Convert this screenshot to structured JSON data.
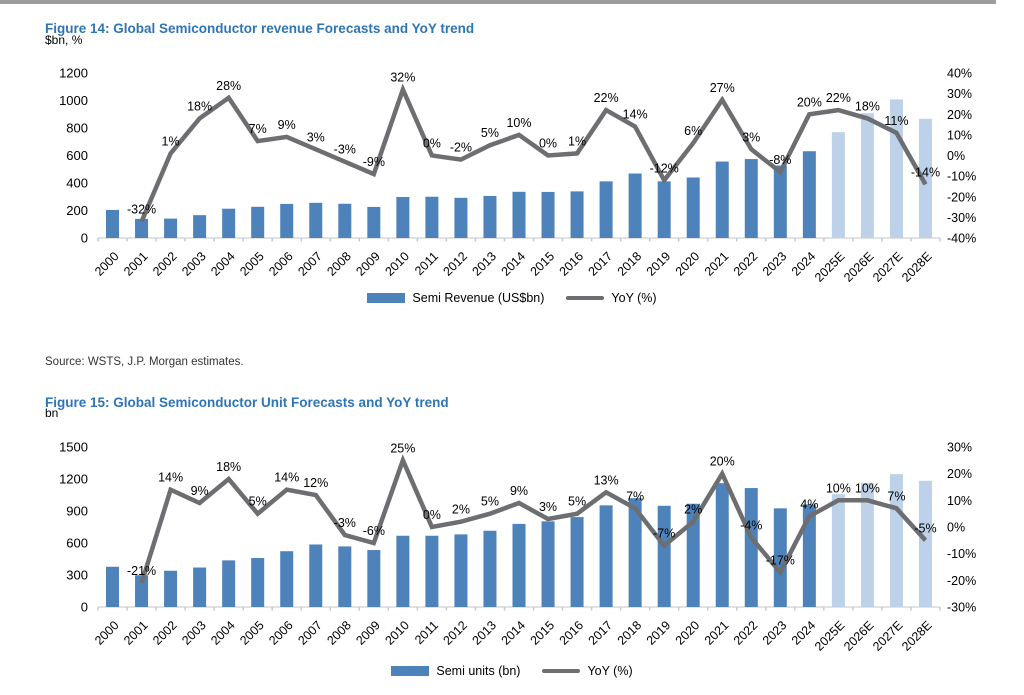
{
  "source": "Source: WSTS, J.P. Morgan estimates.",
  "colors": {
    "bar_actual": "#4e82ba",
    "bar_forecast": "#bdd2e8",
    "yoy_line": "#6d6e71",
    "title_blue": "#2e75b6",
    "axis_line": "#d9d9d9",
    "axis_tick": "#b9cde0"
  },
  "chart_data": [
    {
      "type": "bar+line",
      "title": "Figure 14: Global Semiconductor revenue Forecasts and YoY trend",
      "unit_label": "$bn, %",
      "legend": {
        "bar": "Semi Revenue (US$bn)",
        "line": "YoY (%)"
      },
      "categories": [
        "2000",
        "2001",
        "2002",
        "2003",
        "2004",
        "2005",
        "2006",
        "2007",
        "2008",
        "2009",
        "2010",
        "2011",
        "2012",
        "2013",
        "2014",
        "2015",
        "2016",
        "2017",
        "2018",
        "2019",
        "2020",
        "2021",
        "2022",
        "2023",
        "2024",
        "2025E",
        "2026E",
        "2027E",
        "2028E"
      ],
      "bar_series": {
        "name": "Semi Revenue (US$bn)",
        "values": [
          204,
          139,
          141,
          166,
          213,
          227,
          248,
          256,
          249,
          226,
          298,
          300,
          292,
          306,
          336,
          335,
          339,
          412,
          469,
          412,
          440,
          556,
          574,
          527,
          631,
          770,
          908,
          1008,
          867
        ],
        "forecast_start_index": 25
      },
      "line_series": {
        "name": "YoY (%)",
        "axis": "right",
        "values_pct": [
          null,
          -32,
          1,
          18,
          28,
          7,
          9,
          3,
          -3,
          -9,
          32,
          0,
          -2,
          5,
          10,
          0,
          1,
          22,
          14,
          -12,
          6,
          27,
          3,
          -8,
          20,
          22,
          18,
          11,
          -14
        ],
        "labels": [
          "",
          "-32%",
          "1%",
          "18%",
          "28%",
          "7%",
          "9%",
          "3%",
          "-3%",
          "-9%",
          "32%",
          "0%",
          "-2%",
          "5%",
          "10%",
          "0%",
          "1%",
          "22%",
          "14%",
          "-12%",
          "6%",
          "27%",
          "3%",
          "-8%",
          "20%",
          "22%",
          "18%",
          "11%",
          "-14%"
        ]
      },
      "left_axis": {
        "min": 0,
        "max": 1200,
        "ticks": [
          0,
          200,
          400,
          600,
          800,
          1000,
          1200
        ]
      },
      "right_axis": {
        "min": -40,
        "max": 40,
        "ticks": [
          40,
          30,
          20,
          10,
          0,
          -10,
          -20,
          -30,
          -40
        ],
        "suffix": "%"
      },
      "grid": false,
      "legend_position": "bottom"
    },
    {
      "type": "bar+line",
      "title": "Figure 15: Global Semiconductor Unit Forecasts and YoY trend",
      "unit_label": "bn",
      "legend": {
        "bar": "Semi units (bn)",
        "line": "YoY (%)"
      },
      "categories": [
        "2000",
        "2001",
        "2002",
        "2003",
        "2004",
        "2005",
        "2006",
        "2007",
        "2008",
        "2009",
        "2010",
        "2011",
        "2012",
        "2013",
        "2014",
        "2015",
        "2016",
        "2017",
        "2018",
        "2019",
        "2020",
        "2021",
        "2022",
        "2023",
        "2024",
        "2025E",
        "2026E",
        "2027E",
        "2028E"
      ],
      "bar_series": {
        "name": "Semi units (bn)",
        "values": [
          377,
          298,
          340,
          370,
          437,
          459,
          523,
          586,
          568,
          534,
          668,
          668,
          681,
          715,
          779,
          803,
          843,
          953,
          1020,
          949,
          968,
          1161,
          1115,
          925,
          962,
          1058,
          1164,
          1246,
          1183
        ],
        "forecast_start_index": 25
      },
      "line_series": {
        "name": "YoY (%)",
        "axis": "right",
        "values_pct": [
          null,
          -21,
          14,
          9,
          18,
          5,
          14,
          12,
          -3,
          -6,
          25,
          0,
          2,
          5,
          9,
          3,
          5,
          13,
          7,
          -7,
          2,
          20,
          -4,
          -17,
          4,
          10,
          10,
          7,
          -5
        ],
        "labels": [
          "",
          "-21%",
          "14%",
          "9%",
          "18%",
          "5%",
          "14%",
          "12%",
          "-3%",
          "-6%",
          "25%",
          "0%",
          "2%",
          "5%",
          "9%",
          "3%",
          "5%",
          "13%",
          "7%",
          "-7%",
          "2%",
          "20%",
          "-4%",
          "-17%",
          "4%",
          "10%",
          "10%",
          "7%",
          "-5%"
        ]
      },
      "left_axis": {
        "min": 0,
        "max": 1500,
        "ticks": [
          0,
          300,
          600,
          900,
          1200,
          1500
        ]
      },
      "right_axis": {
        "min": -30,
        "max": 30,
        "ticks": [
          30,
          20,
          10,
          0,
          -10,
          -20,
          -30
        ],
        "suffix": "%"
      },
      "grid": false,
      "legend_position": "bottom"
    }
  ]
}
